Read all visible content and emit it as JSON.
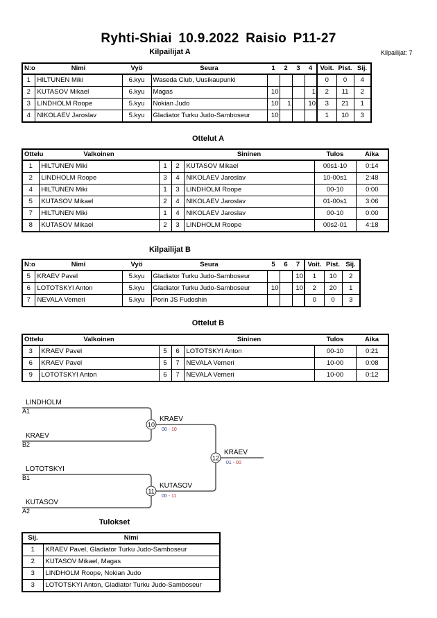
{
  "title": "Ryhti-Shiai  10.9.2022  Raisio   P11-27",
  "kilpailijat_count": "Kilpailijat: 7",
  "kilpailijat_a": {
    "title": "Kilpailijat A",
    "headers": [
      "N:o",
      "Nimi",
      "Vyö",
      "Seura",
      "1",
      "2",
      "3",
      "4",
      "Voit.",
      "Pist.",
      "Sij."
    ],
    "rows": [
      {
        "no": "1",
        "nimi": "HILTUNEN Miki",
        "vyo": "6.kyu",
        "seura": "Waseda Club, Uusikaupunki",
        "s": [
          "",
          "",
          "",
          ""
        ],
        "voit": "0",
        "pist": "0",
        "sij": "4"
      },
      {
        "no": "2",
        "nimi": "KUTASOV Mikael",
        "vyo": "6.kyu",
        "seura": "Magas",
        "s": [
          "10",
          "",
          "",
          "1"
        ],
        "voit": "2",
        "pist": "11",
        "sij": "2"
      },
      {
        "no": "3",
        "nimi": "LINDHOLM Roope",
        "vyo": "5.kyu",
        "seura": "Nokian Judo",
        "s": [
          "10",
          "1",
          "",
          "10"
        ],
        "voit": "3",
        "pist": "21",
        "sij": "1"
      },
      {
        "no": "4",
        "nimi": "NIKOLAEV Jaroslav",
        "vyo": "5.kyu",
        "seura": "Gladiator Turku Judo-Samboseur",
        "s": [
          "10",
          "",
          "",
          ""
        ],
        "voit": "1",
        "pist": "10",
        "sij": "3"
      }
    ]
  },
  "ottelut_a": {
    "title": "Ottelut A",
    "headers": [
      "Ottelu",
      "Valkoinen",
      "",
      "",
      "Sininen",
      "Tulos",
      "Aika"
    ],
    "rows": [
      {
        "ottelu": "1",
        "valkoinen": "HILTUNEN Miki",
        "wn": "1",
        "bn": "2",
        "sininen": "KUTASOV Mikael",
        "tulos": "00s1-10",
        "aika": "0:14"
      },
      {
        "ottelu": "2",
        "valkoinen": "LINDHOLM Roope",
        "wn": "3",
        "bn": "4",
        "sininen": "NIKOLAEV Jaroslav",
        "tulos": "10-00s1",
        "aika": "2:48"
      },
      {
        "ottelu": "4",
        "valkoinen": "HILTUNEN Miki",
        "wn": "1",
        "bn": "3",
        "sininen": "LINDHOLM Roope",
        "tulos": "00-10",
        "aika": "0:00"
      },
      {
        "ottelu": "5",
        "valkoinen": "KUTASOV Mikael",
        "wn": "2",
        "bn": "4",
        "sininen": "NIKOLAEV Jaroslav",
        "tulos": "01-00s1",
        "aika": "3:06"
      },
      {
        "ottelu": "7",
        "valkoinen": "HILTUNEN Miki",
        "wn": "1",
        "bn": "4",
        "sininen": "NIKOLAEV Jaroslav",
        "tulos": "00-10",
        "aika": "0:00"
      },
      {
        "ottelu": "8",
        "valkoinen": "KUTASOV Mikael",
        "wn": "2",
        "bn": "3",
        "sininen": "LINDHOLM Roope",
        "tulos": "00s2-01",
        "aika": "4:18"
      }
    ]
  },
  "kilpailijat_b": {
    "title": "Kilpailijat B",
    "headers": [
      "N:o",
      "Nimi",
      "Vyö",
      "Seura",
      "5",
      "6",
      "7",
      "Voit.",
      "Pist.",
      "Sij."
    ],
    "rows": [
      {
        "no": "5",
        "nimi": "KRAEV Pavel",
        "vyo": "5.kyu",
        "seura": "Gladiator Turku Judo-Samboseur",
        "s": [
          "",
          "",
          "10"
        ],
        "voit": "1",
        "pist": "10",
        "sij": "2"
      },
      {
        "no": "6",
        "nimi": "LOTOTSKYI Anton",
        "vyo": "5.kyu",
        "seura": "Gladiator Turku Judo-Samboseur",
        "s": [
          "10",
          "",
          "10"
        ],
        "voit": "2",
        "pist": "20",
        "sij": "1"
      },
      {
        "no": "7",
        "nimi": "NEVALA Verneri",
        "vyo": "5.kyu",
        "seura": "Porin JS Fudoshin",
        "s": [
          "",
          "",
          ""
        ],
        "voit": "0",
        "pist": "0",
        "sij": "3"
      }
    ]
  },
  "ottelut_b": {
    "title": "Ottelut B",
    "headers": [
      "Ottelu",
      "Valkoinen",
      "",
      "",
      "Sininen",
      "Tulos",
      "Aika"
    ],
    "rows": [
      {
        "ottelu": "3",
        "valkoinen": "KRAEV Pavel",
        "wn": "5",
        "bn": "6",
        "sininen": "LOTOTSKYI Anton",
        "tulos": "00-10",
        "aika": "0:21"
      },
      {
        "ottelu": "6",
        "valkoinen": "KRAEV Pavel",
        "wn": "5",
        "bn": "7",
        "sininen": "NEVALA Verneri",
        "tulos": "10-00",
        "aika": "0:08"
      },
      {
        "ottelu": "9",
        "valkoinen": "LOTOTSKYI Anton",
        "wn": "6",
        "bn": "7",
        "sininen": "NEVALA Verneri",
        "tulos": "10-00",
        "aika": "0:12"
      }
    ]
  },
  "bracket": {
    "entries": [
      {
        "name": "LINDHOLM",
        "seed": "A1"
      },
      {
        "name": "KRAEV",
        "seed": "B2"
      },
      {
        "name": "LOTOTSKYI",
        "seed": "B1"
      },
      {
        "name": "KUTASOV",
        "seed": "A2"
      }
    ],
    "matches": [
      {
        "no": "10",
        "winner": "KRAEV",
        "score_white": "00",
        "score_blue": "10"
      },
      {
        "no": "11",
        "winner": "KUTASOV",
        "score_white": "00",
        "score_blue": "11"
      },
      {
        "no": "12",
        "winner": "KRAEV",
        "score_white": "01",
        "score_blue": "00"
      }
    ],
    "colors": {
      "score_white": "#2a3a8a",
      "score_blue": "#b03030"
    }
  },
  "tulokset": {
    "title": "Tulokset",
    "headers": [
      "Sij.",
      "Nimi"
    ],
    "rows": [
      {
        "sij": "1",
        "nimi": "KRAEV Pavel, Gladiator Turku Judo-Samboseur"
      },
      {
        "sij": "2",
        "nimi": "KUTASOV Mikael, Magas"
      },
      {
        "sij": "3",
        "nimi": "LINDHOLM Roope, Nokian Judo"
      },
      {
        "sij": "3",
        "nimi": "LOTOTSKYI Anton, Gladiator Turku Judo-Samboseur"
      }
    ]
  }
}
